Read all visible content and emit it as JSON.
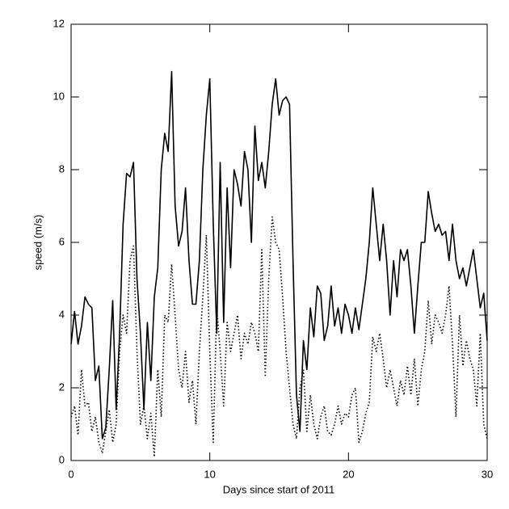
{
  "chart_data": {
    "type": "line",
    "xlabel": "Days since start of 2011",
    "ylabel": "speed (m/s)",
    "xlim": [
      0,
      30
    ],
    "xticks": [
      0,
      10,
      20,
      30
    ],
    "ylim": [
      0,
      12
    ],
    "yticks": [
      0,
      2,
      4,
      6,
      8,
      10,
      12
    ],
    "x": [
      0,
      0.25,
      0.5,
      0.75,
      1,
      1.25,
      1.5,
      1.75,
      2,
      2.25,
      2.5,
      2.75,
      3,
      3.25,
      3.5,
      3.75,
      4,
      4.25,
      4.5,
      4.75,
      5,
      5.25,
      5.5,
      5.75,
      6,
      6.25,
      6.5,
      6.75,
      7,
      7.25,
      7.5,
      7.75,
      8,
      8.25,
      8.5,
      8.75,
      9,
      9.25,
      9.5,
      9.75,
      10,
      10.25,
      10.5,
      10.75,
      11,
      11.25,
      11.5,
      11.75,
      12,
      12.25,
      12.5,
      12.75,
      13,
      13.25,
      13.5,
      13.75,
      14,
      14.25,
      14.5,
      14.75,
      15,
      15.25,
      15.5,
      15.75,
      16,
      16.25,
      16.5,
      16.75,
      17,
      17.25,
      17.5,
      17.75,
      18,
      18.25,
      18.5,
      18.75,
      19,
      19.25,
      19.5,
      19.75,
      20,
      20.25,
      20.5,
      20.75,
      21,
      21.25,
      21.5,
      21.75,
      22,
      22.25,
      22.5,
      22.75,
      23,
      23.25,
      23.5,
      23.75,
      24,
      24.25,
      24.5,
      24.75,
      25,
      25.25,
      25.5,
      25.75,
      26,
      26.25,
      26.5,
      26.75,
      27,
      27.25,
      27.5,
      27.75,
      28,
      28.25,
      28.5,
      28.75,
      29,
      29.25,
      29.5,
      29.75,
      30
    ],
    "series": [
      {
        "color": "#000000",
        "linestyle": "solid",
        "values": [
          3.2,
          4.1,
          3.2,
          3.7,
          4.5,
          4.3,
          4.2,
          2.2,
          2.6,
          0.6,
          0.9,
          2.5,
          4.4,
          1.4,
          3.5,
          6.5,
          7.9,
          7.8,
          8.2,
          5.0,
          3.5,
          1.4,
          3.8,
          2.2,
          4.5,
          5.3,
          8.0,
          9.0,
          8.5,
          10.7,
          7.0,
          5.9,
          6.3,
          7.5,
          5.5,
          4.3,
          4.3,
          5.5,
          8.0,
          9.5,
          10.5,
          6.5,
          3.5,
          8.2,
          3.8,
          7.5,
          5.3,
          8.0,
          7.6,
          7.0,
          8.5,
          8.0,
          6.0,
          9.2,
          7.7,
          8.2,
          7.5,
          8.5,
          9.8,
          10.5,
          9.5,
          9.9,
          10.0,
          9.8,
          5.5,
          1.8,
          0.8,
          3.3,
          2.5,
          4.2,
          3.4,
          4.8,
          4.6,
          3.3,
          3.7,
          4.8,
          3.7,
          4.2,
          3.5,
          4.3,
          4.0,
          3.5,
          4.2,
          3.6,
          4.3,
          5.0,
          6.0,
          7.5,
          6.5,
          5.5,
          6.5,
          5.5,
          4.0,
          5.5,
          4.5,
          5.8,
          5.5,
          5.8,
          4.8,
          3.5,
          4.8,
          6.0,
          6.0,
          7.4,
          6.8,
          6.3,
          6.5,
          6.2,
          6.3,
          5.5,
          6.5,
          5.5,
          5.0,
          5.3,
          4.8,
          5.3,
          5.8,
          5.0,
          4.2,
          4.6,
          3.3
        ]
      },
      {
        "color": "#000000",
        "linestyle": "dotted",
        "values": [
          1.2,
          1.5,
          0.7,
          2.5,
          1.5,
          1.6,
          0.8,
          1.2,
          0.5,
          0.2,
          0.8,
          1.4,
          0.5,
          1.0,
          3.0,
          4.0,
          3.5,
          5.5,
          5.9,
          3.0,
          1.0,
          1.5,
          0.6,
          1.3,
          0.1,
          2.5,
          1.2,
          4.0,
          3.8,
          5.4,
          4.0,
          2.5,
          2.0,
          3.0,
          1.6,
          2.2,
          1.0,
          3.0,
          4.5,
          6.2,
          3.0,
          0.5,
          4.2,
          3.0,
          1.5,
          3.8,
          3.0,
          3.5,
          4.0,
          2.8,
          3.5,
          3.2,
          3.8,
          3.5,
          3.0,
          5.8,
          2.3,
          5.0,
          6.7,
          6.0,
          5.8,
          4.5,
          3.0,
          2.0,
          1.0,
          0.6,
          2.0,
          2.5,
          0.8,
          1.8,
          1.0,
          0.6,
          1.2,
          1.5,
          0.8,
          0.7,
          1.0,
          1.5,
          1.0,
          1.3,
          1.2,
          1.8,
          2.0,
          0.5,
          0.8,
          1.3,
          1.6,
          3.4,
          3.0,
          3.5,
          2.8,
          2.0,
          2.5,
          2.0,
          1.5,
          2.2,
          1.8,
          2.6,
          1.8,
          2.8,
          1.5,
          2.5,
          3.0,
          4.4,
          3.2,
          4.0,
          3.8,
          3.5,
          4.0,
          4.8,
          3.2,
          1.2,
          4.0,
          2.6,
          3.3,
          2.8,
          2.5,
          1.5,
          3.5,
          1.0,
          0.6
        ]
      }
    ]
  }
}
